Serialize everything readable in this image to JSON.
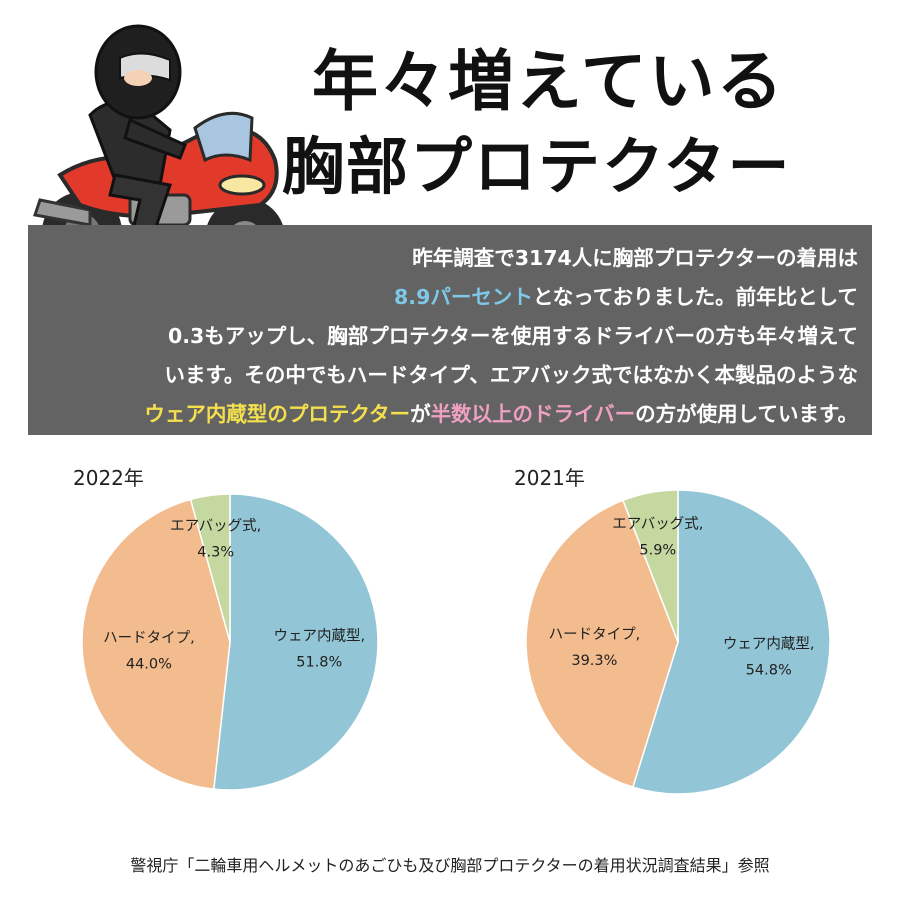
{
  "header": {
    "title_line1": "年々増えている",
    "title_line2": "胸部プロテクター"
  },
  "info": {
    "line1": "昨年調査で3174人に胸部プロテクターの着用は",
    "line2_highlight": "8.9パーセント",
    "line2_rest": "となっておりました。前年比として",
    "line3": "0.3もアップし、胸部プロテクターを使用するドライバーの方も年々増えて",
    "line4": "います。その中でもハードタイプ、エアバック式ではなかく本製品のような",
    "line5_highlight1": "ウェア内蔵型のプロテクター",
    "line5_mid": "が",
    "line5_highlight2": "半数以上のドライバー",
    "line5_rest": "の方が使用しています。"
  },
  "colors": {
    "info_bg": "#636363",
    "highlight_blue": "#7ec8e8",
    "highlight_yellow": "#f4e04d",
    "highlight_pink": "#f0a0c0"
  },
  "chart_data": [
    {
      "type": "pie",
      "title": "2022年",
      "slices": [
        {
          "label": "ウェア内蔵型,",
          "value": 51.8,
          "value_label": "51.8%",
          "color": "#92c5d5"
        },
        {
          "label": "ハードタイプ,",
          "value": 44.0,
          "value_label": "44.0%",
          "color": "#f2bc8e"
        },
        {
          "label": "エアバッグ式,",
          "value": 4.3,
          "value_label": "4.3%",
          "color": "#c5d8a0"
        }
      ]
    },
    {
      "type": "pie",
      "title": "2021年",
      "slices": [
        {
          "label": "ウェア内蔵型,",
          "value": 54.8,
          "value_label": "54.8%",
          "color": "#92c5d5"
        },
        {
          "label": "ハードタイプ,",
          "value": 39.3,
          "value_label": "39.3%",
          "color": "#f2bc8e"
        },
        {
          "label": "エアバッグ式,",
          "value": 5.9,
          "value_label": "5.9%",
          "color": "#c5d8a0"
        }
      ]
    }
  ],
  "footer": {
    "source": "警視庁「二輪車用ヘルメットのあごひも及び胸部プロテクターの着用状況調査結果」参照"
  }
}
